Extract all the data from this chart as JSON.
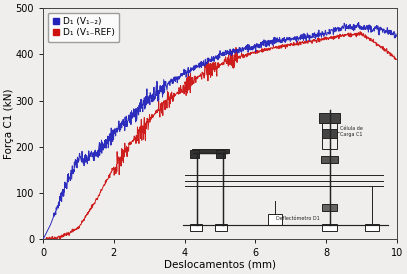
{
  "xlabel": "Deslocamentos (mm)",
  "ylabel": "Força C1 (kN)",
  "xlim": [
    0,
    10
  ],
  "ylim": [
    0,
    500
  ],
  "xticks": [
    0,
    2,
    4,
    6,
    8,
    10
  ],
  "yticks": [
    0,
    100,
    200,
    300,
    400,
    500
  ],
  "legend_label_blue": "D₁ (V₁₋₂)",
  "legend_label_red": "D₁ (V₁₋REF)",
  "blue_color": "#2222bb",
  "red_color": "#cc1111",
  "background_color": "#f0eeec",
  "figsize": [
    4.07,
    2.74
  ],
  "dpi": 100
}
